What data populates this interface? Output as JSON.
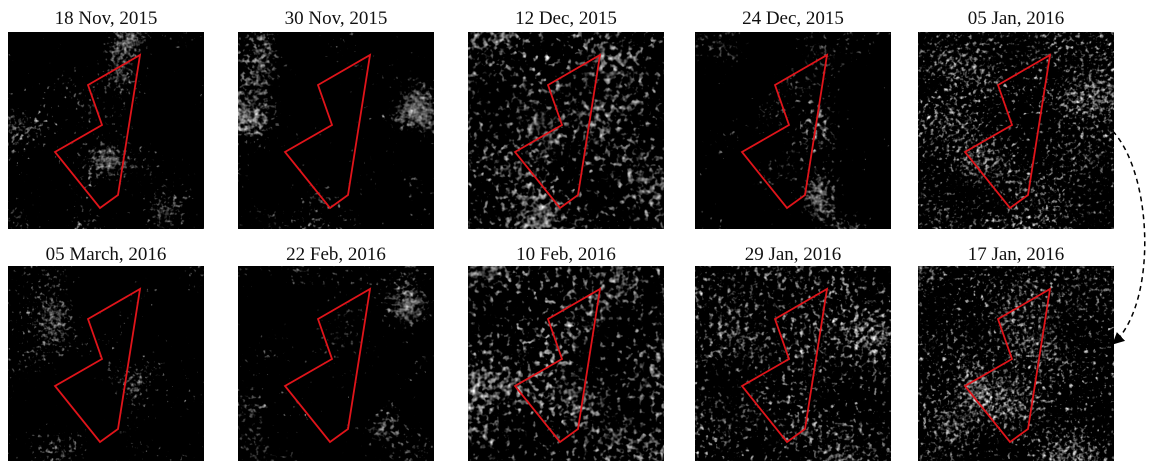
{
  "top_row": {
    "panels": [
      {
        "label": "18 Nov, 2015"
      },
      {
        "label": "30 Nov, 2015"
      },
      {
        "label": "12 Dec, 2015"
      },
      {
        "label": "24 Dec, 2015"
      },
      {
        "label": "05 Jan, 2016"
      }
    ]
  },
  "bottom_row": {
    "panels": [
      {
        "label": "05 March, 2016"
      },
      {
        "label": "22 Feb, 2016"
      },
      {
        "label": "10 Feb, 2016"
      },
      {
        "label": "29 Jan, 2016"
      },
      {
        "label": "17 Jan, 2016"
      }
    ]
  }
}
